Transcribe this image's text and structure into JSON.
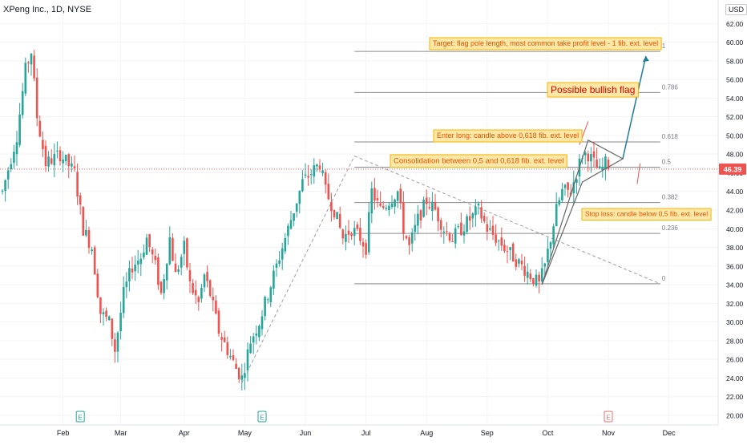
{
  "symbol_header": "XPeng Inc., 1D, NYSE",
  "currency_label": "USD",
  "price_tag": "46.39",
  "colors": {
    "up": "#26a69a",
    "down": "#ef5350",
    "fib_line": "#8a8a8a",
    "trend_line": "#9e9e9e",
    "arrow": "#1f7a99",
    "annotation_fill": "#ffe8a6",
    "annotation_border": "#f5b400",
    "annotation_text": "#e65100",
    "title_text": "#d50000",
    "earnings_past": "#26a69a",
    "earnings_future": "#e57373"
  },
  "chart_data": {
    "type": "candlestick",
    "title": "",
    "ylim": [
      20,
      64
    ],
    "y_ticks": [
      "20.00",
      "22.00",
      "24.00",
      "26.00",
      "28.00",
      "30.00",
      "32.00",
      "34.00",
      "36.00",
      "38.00",
      "40.00",
      "42.00",
      "44.00",
      "46.00",
      "48.00",
      "50.00",
      "52.00",
      "54.00",
      "56.00",
      "58.00",
      "60.00",
      "62.00"
    ],
    "x_ticks": [
      {
        "label": "Feb",
        "day": 21
      },
      {
        "label": "Mar",
        "day": 41
      },
      {
        "label": "Apr",
        "day": 63
      },
      {
        "label": "May",
        "day": 84
      },
      {
        "label": "Jun",
        "day": 105
      },
      {
        "label": "Jul",
        "day": 126
      },
      {
        "label": "Aug",
        "day": 147
      },
      {
        "label": "Sep",
        "day": 168
      },
      {
        "label": "Oct",
        "day": 189
      },
      {
        "label": "Nov",
        "day": 210
      },
      {
        "label": "Dec",
        "day": 231
      }
    ],
    "price_path": [
      [
        0,
        44
      ],
      [
        5,
        50
      ],
      [
        8,
        57
      ],
      [
        10,
        59
      ],
      [
        12,
        52
      ],
      [
        15,
        47
      ],
      [
        20,
        48
      ],
      [
        25,
        46
      ],
      [
        28,
        40
      ],
      [
        31,
        38
      ],
      [
        34,
        31
      ],
      [
        37,
        30
      ],
      [
        39,
        27
      ],
      [
        42,
        33
      ],
      [
        45,
        36
      ],
      [
        48,
        37
      ],
      [
        50,
        39
      ],
      [
        53,
        36
      ],
      [
        55,
        33
      ],
      [
        58,
        39
      ],
      [
        60,
        35
      ],
      [
        63,
        38
      ],
      [
        65,
        34
      ],
      [
        68,
        32
      ],
      [
        70,
        35
      ],
      [
        72,
        33
      ],
      [
        75,
        29
      ],
      [
        78,
        27
      ],
      [
        81,
        25
      ],
      [
        83,
        24
      ],
      [
        86,
        28
      ],
      [
        89,
        30
      ],
      [
        92,
        33
      ],
      [
        95,
        36
      ],
      [
        98,
        39
      ],
      [
        101,
        42
      ],
      [
        104,
        45
      ],
      [
        107,
        46
      ],
      [
        110,
        47
      ],
      [
        112,
        44
      ],
      [
        115,
        42
      ],
      [
        118,
        39
      ],
      [
        121,
        40
      ],
      [
        124,
        39
      ],
      [
        126,
        38
      ],
      [
        128,
        44
      ],
      [
        131,
        42
      ],
      [
        134,
        43
      ],
      [
        137,
        44
      ],
      [
        139,
        40
      ],
      [
        141,
        38
      ],
      [
        144,
        41
      ],
      [
        147,
        43
      ],
      [
        150,
        42
      ],
      [
        153,
        40
      ],
      [
        156,
        39
      ],
      [
        159,
        40
      ],
      [
        162,
        41
      ],
      [
        165,
        42
      ],
      [
        168,
        40
      ],
      [
        171,
        39
      ],
      [
        174,
        38
      ],
      [
        177,
        37
      ],
      [
        180,
        36
      ],
      [
        183,
        35
      ],
      [
        186,
        34
      ],
      [
        188,
        36
      ],
      [
        190,
        39
      ],
      [
        192,
        42
      ],
      [
        194,
        44
      ],
      [
        197,
        44
      ],
      [
        199,
        46
      ],
      [
        201,
        48
      ],
      [
        203,
        48
      ],
      [
        205,
        47
      ],
      [
        207,
        46
      ],
      [
        209,
        47
      ],
      [
        210,
        46.4
      ]
    ],
    "earnings_markers": [
      {
        "label": "E",
        "day": 27,
        "kind": "past"
      },
      {
        "label": "E",
        "day": 90,
        "kind": "past"
      },
      {
        "label": "E",
        "day": 210,
        "kind": "future"
      }
    ],
    "fib_levels": [
      {
        "label": "1",
        "value": 59.0
      },
      {
        "label": "0.786",
        "value": 54.6
      },
      {
        "label": "0.618",
        "value": 49.3
      },
      {
        "label": "0.5",
        "value": 46.6
      },
      {
        "label": "0.382",
        "value": 42.8
      },
      {
        "label": "0.236",
        "value": 39.5
      },
      {
        "label": "0",
        "value": 34.1
      }
    ],
    "annotations": {
      "title": "Possible bullish flag",
      "target": "Target: flag pole length, most common take profit level - 1 fib. ext. level",
      "enter": "Enter long: candle above 0,618 fib. ext. level",
      "consolidation": "Consolidation between 0,5 and 0,618 fib. ext. level",
      "stop": "Stop loss: candle below 0,5 fib. ext. level"
    },
    "last_price": 46.39
  }
}
